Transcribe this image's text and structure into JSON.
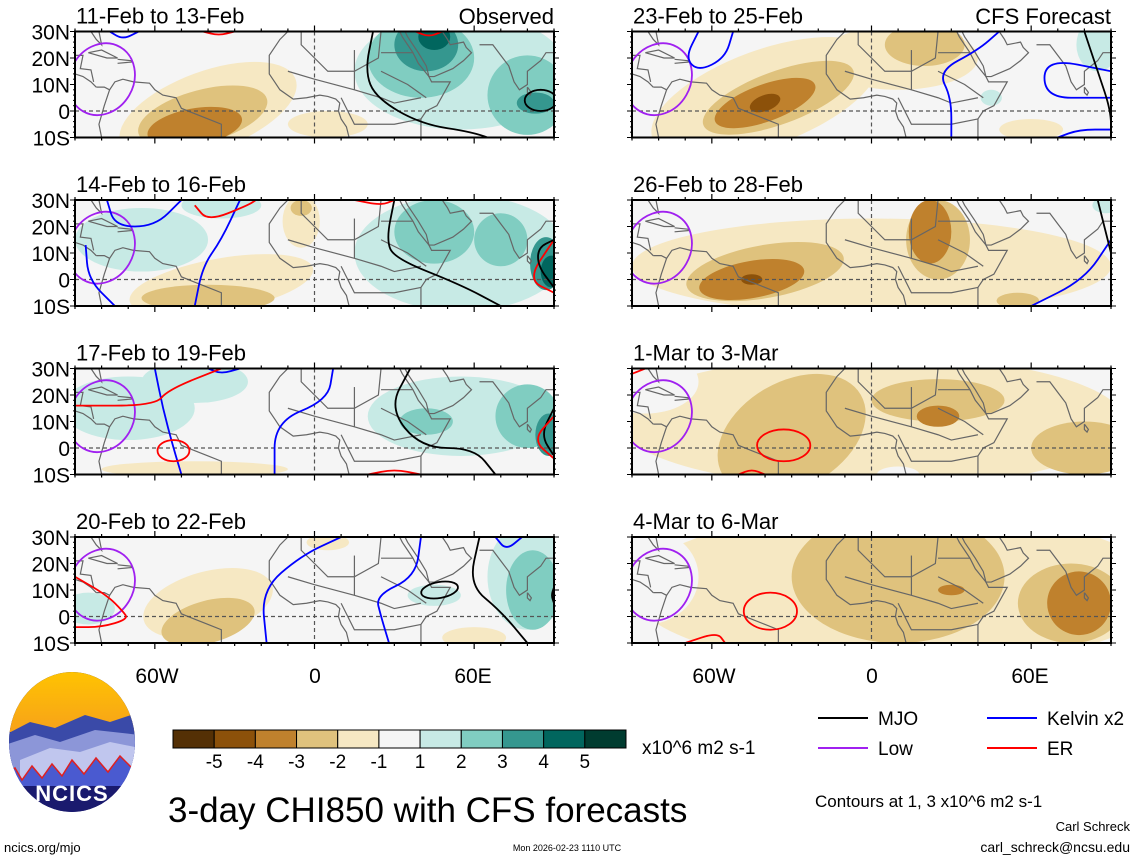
{
  "figure": {
    "title": "3-day CHI850 with CFS forecasts",
    "left_column_label": "Observed",
    "right_column_label": "CFS Forecast",
    "panels_left": [
      {
        "title": "11-Feb to 13-Feb"
      },
      {
        "title": "14-Feb to 16-Feb"
      },
      {
        "title": "17-Feb to 19-Feb"
      },
      {
        "title": "20-Feb to 22-Feb"
      }
    ],
    "panels_right": [
      {
        "title": "23-Feb to 25-Feb"
      },
      {
        "title": "26-Feb to 28-Feb"
      },
      {
        "title": "1-Mar to 3-Mar"
      },
      {
        "title": "4-Mar to 6-Mar"
      }
    ],
    "lat_labels": [
      "30N",
      "20N",
      "10N",
      "0",
      "10S"
    ],
    "lon_labels": [
      "60W",
      "0",
      "60E"
    ]
  },
  "colorbar": {
    "colors": [
      "#543005",
      "#8c510a",
      "#bf812d",
      "#dfc27d",
      "#f6e8c3",
      "#f5f5f5",
      "#c7eae5",
      "#80cdc1",
      "#35978f",
      "#01665e",
      "#003c30"
    ],
    "tick_labels": [
      "-5",
      "-4",
      "-3",
      "-2",
      "-1",
      "1",
      "2",
      "3",
      "4",
      "5"
    ],
    "units": "x10^6 m2 s-1"
  },
  "legend": {
    "items": [
      {
        "label": "MJO",
        "color": "#000000"
      },
      {
        "label": "Kelvin x2",
        "color": "#0000ff"
      },
      {
        "label": "Low",
        "color": "#a020f0"
      },
      {
        "label": "ER",
        "color": "#ff0000"
      }
    ],
    "contour_note": "Contours at 1, 3 x10^6 m2 s-1"
  },
  "footer": {
    "logo_text": "NCICS",
    "site": "ncics.org/mjo",
    "timestamp": "Mon 2026-02-23 1110 UTC",
    "author": "Carl Schreck",
    "email": "carl_schreck@ncsu.edu"
  }
}
